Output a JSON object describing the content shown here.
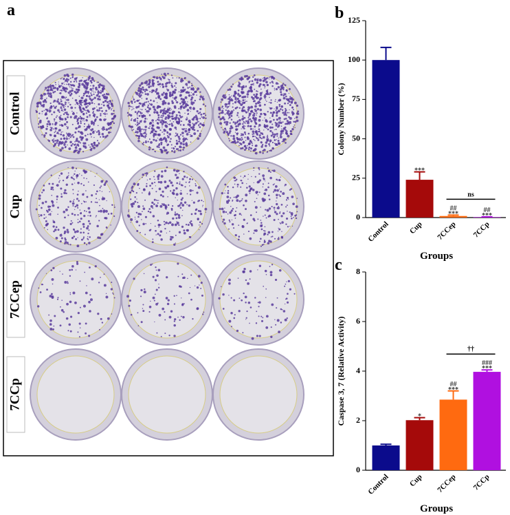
{
  "photo_panel": {
    "panel": "a",
    "rows": [
      "Control",
      "Cup",
      "7CCep",
      "7CCp"
    ]
  },
  "chart_data": [
    {
      "type": "bar",
      "panel": "b",
      "xlabel": "Groups",
      "ylabel": "Colony Number (%)",
      "categories": [
        "Control",
        "Cup",
        "7CCep",
        "7CCp"
      ],
      "values": [
        100,
        24,
        1,
        0.3
      ],
      "errors": [
        8,
        5,
        0.6,
        0.2
      ],
      "colors": [
        "#0b0b8c",
        "#a50a0a",
        "#ff6a10",
        "#b010e0"
      ],
      "annotations": [
        null,
        [
          "***"
        ],
        [
          "##",
          "***"
        ],
        [
          "##",
          "***"
        ]
      ],
      "bracket": {
        "label": "ns",
        "span": [
          2,
          3
        ]
      },
      "ylim": [
        0,
        125
      ],
      "yticks": [
        0,
        25,
        50,
        75,
        100,
        125
      ]
    },
    {
      "type": "bar",
      "panel": "c",
      "xlabel": "Groups",
      "ylabel": "Caspase 3, 7 (Relative Activity)",
      "categories": [
        "Control",
        "Cup",
        "7CCep",
        "7CCp"
      ],
      "values": [
        1.0,
        2.02,
        2.85,
        3.97
      ],
      "errors": [
        0.05,
        0.1,
        0.35,
        0.08
      ],
      "colors": [
        "#0b0b8c",
        "#a50a0a",
        "#ff6a10",
        "#b010e0"
      ],
      "annotations": [
        null,
        [
          "*"
        ],
        [
          "##",
          "***"
        ],
        [
          "###",
          "***"
        ]
      ],
      "bracket": {
        "label": "††",
        "span": [
          2,
          3
        ]
      },
      "ylim": [
        0,
        8
      ],
      "yticks": [
        0,
        2,
        4,
        6,
        8
      ]
    }
  ]
}
